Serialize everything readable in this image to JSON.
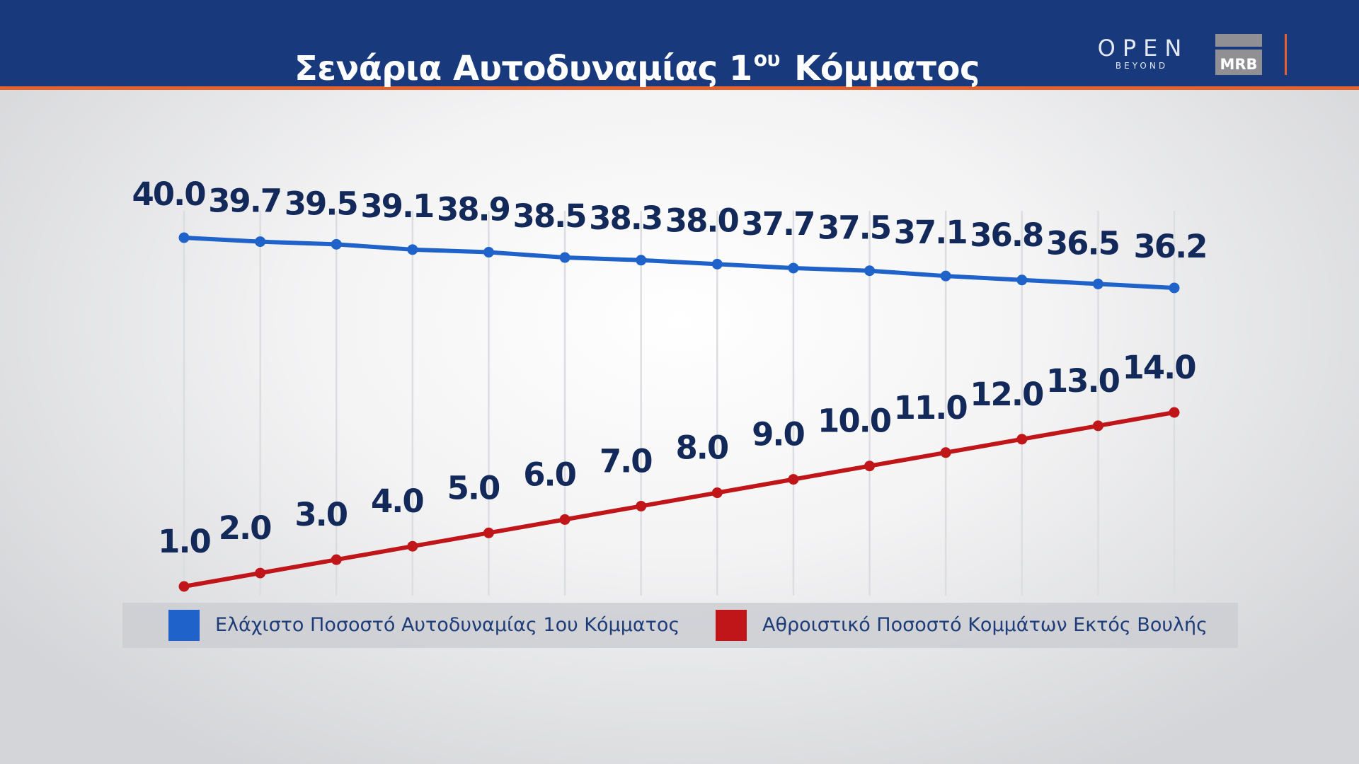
{
  "header": {
    "title": "Σενάρια Αυτοδυναμίας 1",
    "title_sup": "ου",
    "title_end": "Κόμματος",
    "logo_open": "OPEN",
    "logo_open_sub": "BEYOND",
    "logo_mrb": "MRB"
  },
  "colors": {
    "header_bg": "#183a7c",
    "accent": "#e8602a",
    "series_blue": "#1f62c9",
    "series_red": "#c0161a",
    "label_text": "#13295a"
  },
  "chart_data": {
    "type": "line",
    "title": "Σενάρια Αυτοδυναμίας 1ου Κόμματος",
    "xlabel": "",
    "ylabel": "",
    "ylim": [
      0,
      42
    ],
    "grid": "vertical lines",
    "legend_position": "bottom",
    "series": [
      {
        "name": "Ελάχιστο Ποσοστό Αυτοδυναμίας 1ου Κόμματος",
        "color": "#1f62c9",
        "values": [
          40.0,
          39.7,
          39.5,
          39.1,
          38.9,
          38.5,
          38.3,
          38.0,
          37.7,
          37.5,
          37.1,
          36.8,
          36.5,
          36.2
        ],
        "labels": [
          "40.0",
          "39.7",
          "39.5",
          "39.1",
          "38.9",
          "38.5",
          "38.3",
          "38.0",
          "37.7",
          "37.5",
          "37.1",
          "36.8",
          "36.5",
          "36.2"
        ]
      },
      {
        "name": "Αθροιστικό Ποσοστό Κομμάτων Εκτός Βουλής",
        "color": "#c0161a",
        "values": [
          1.0,
          2.0,
          3.0,
          4.0,
          5.0,
          6.0,
          7.0,
          8.0,
          9.0,
          10.0,
          11.0,
          12.0,
          13.0,
          14.0
        ],
        "labels": [
          "1.0",
          "2.0",
          "3.0",
          "4.0",
          "5.0",
          "6.0",
          "7.0",
          "8.0",
          "9.0",
          "10.0",
          "11.0",
          "12.0",
          "13.0",
          "14.0"
        ]
      }
    ]
  }
}
